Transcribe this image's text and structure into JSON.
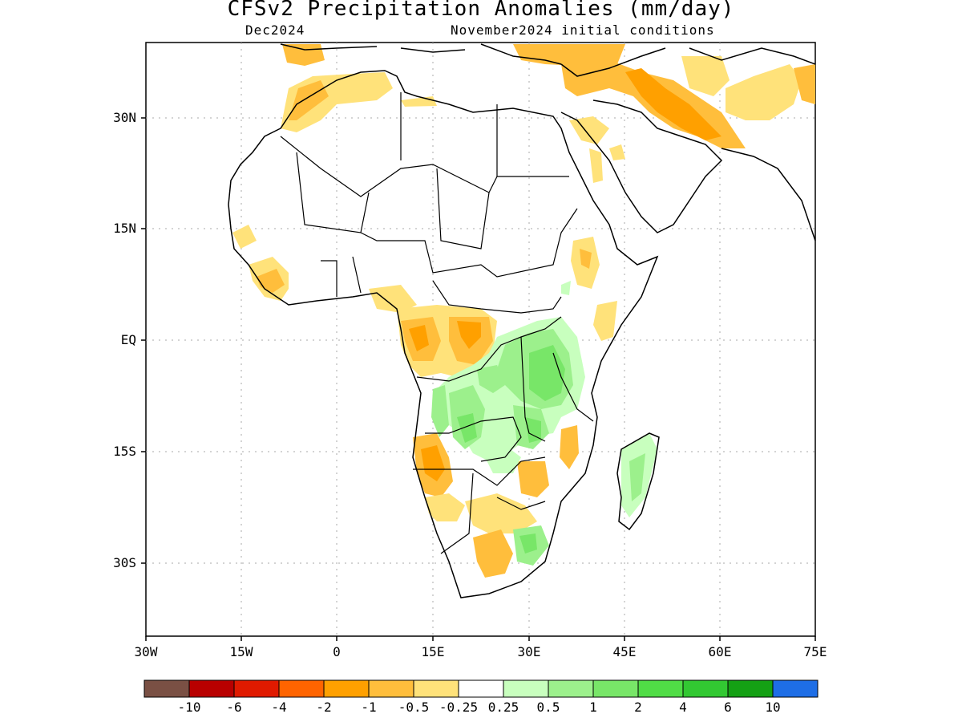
{
  "header": {
    "title": "CFSv2 Precipitation Anomalies (mm/day)",
    "subtitle_left": "Dec2024",
    "subtitle_right": "November2024 initial conditions"
  },
  "axes": {
    "y_labels": [
      "30N",
      "15N",
      "EQ",
      "15S",
      "30S"
    ],
    "x_labels": [
      "30W",
      "15W",
      "0",
      "15E",
      "30E",
      "45E",
      "60E",
      "75E"
    ],
    "lon_range": [
      -30,
      75
    ],
    "lat_range": [
      -41,
      39
    ]
  },
  "colorbar": {
    "colors": [
      "#7a5044",
      "#b80000",
      "#e01a00",
      "#ff6400",
      "#ffa000",
      "#ffbe3c",
      "#ffe27a",
      "#ffffff",
      "#c8ffbe",
      "#9cf08c",
      "#78e668",
      "#50dc46",
      "#32c832",
      "#14a014",
      "#1e6ee6"
    ],
    "labels": [
      "-10",
      "-6",
      "-4",
      "-2",
      "-1",
      "-0.5",
      "-0.25",
      "0.25",
      "0.5",
      "1",
      "2",
      "4",
      "6",
      "10"
    ]
  }
}
